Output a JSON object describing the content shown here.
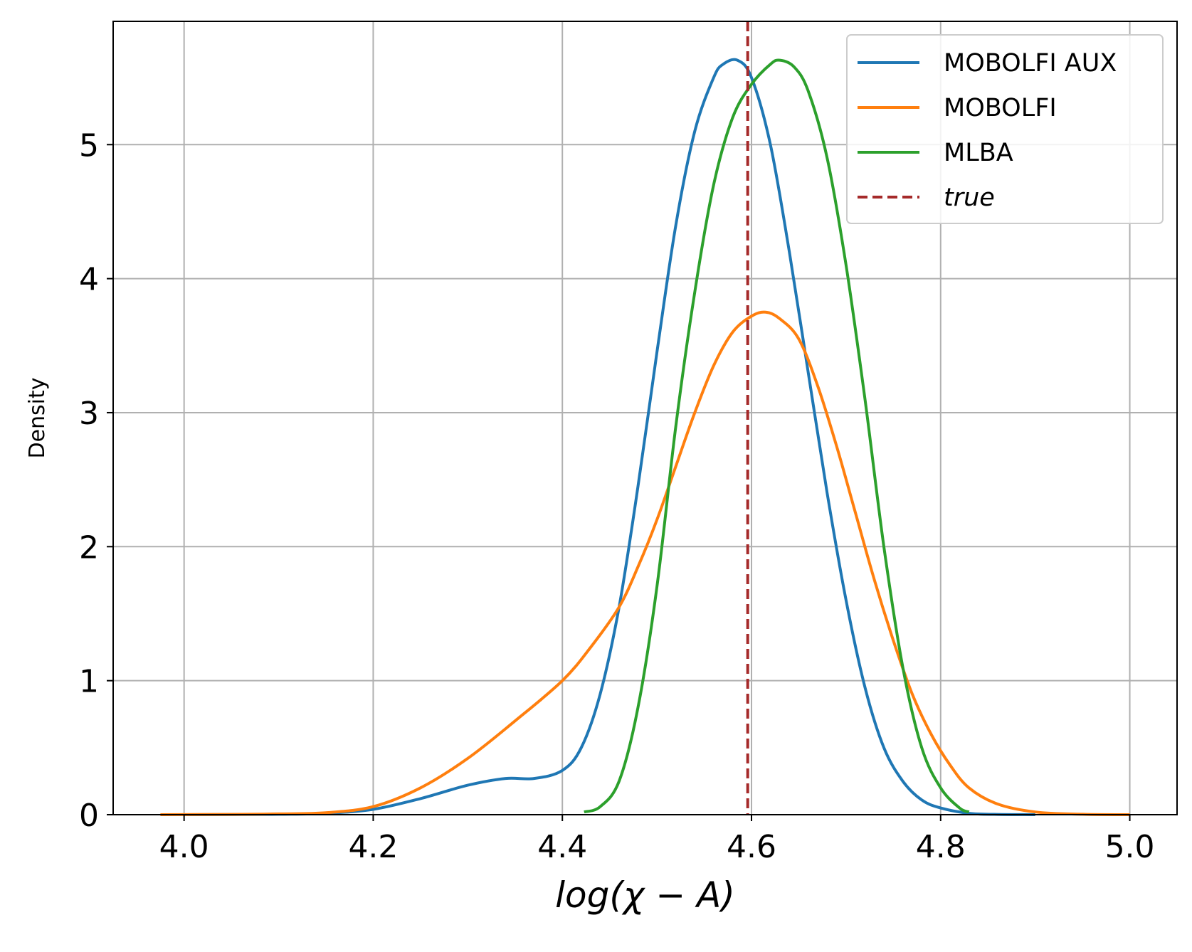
{
  "chart_data": {
    "type": "line",
    "xlabel": "log(χ − A)",
    "ylabel": "Density",
    "xlim": [
      3.925,
      5.05
    ],
    "ylim": [
      0,
      5.92
    ],
    "grid": true,
    "legend_position": "top-right",
    "xticks": [
      "4.0",
      "4.2",
      "4.4",
      "4.6",
      "4.8",
      "5.0"
    ],
    "xtick_values": [
      4.0,
      4.2,
      4.4,
      4.6,
      4.8,
      5.0
    ],
    "yticks": [
      "0",
      "1",
      "2",
      "3",
      "4",
      "5"
    ],
    "ytick_values": [
      0,
      1,
      2,
      3,
      4,
      5
    ],
    "series": [
      {
        "name": "MOBOLFI AUX",
        "color": "#1f77b4",
        "style": "solid",
        "points": [
          [
            4.0,
            0.0
          ],
          [
            4.1,
            0.003
          ],
          [
            4.15,
            0.01
          ],
          [
            4.2,
            0.04
          ],
          [
            4.25,
            0.12
          ],
          [
            4.3,
            0.22
          ],
          [
            4.34,
            0.27
          ],
          [
            4.37,
            0.27
          ],
          [
            4.4,
            0.33
          ],
          [
            4.42,
            0.5
          ],
          [
            4.44,
            0.9
          ],
          [
            4.46,
            1.55
          ],
          [
            4.48,
            2.45
          ],
          [
            4.5,
            3.45
          ],
          [
            4.52,
            4.4
          ],
          [
            4.54,
            5.1
          ],
          [
            4.56,
            5.5
          ],
          [
            4.57,
            5.6
          ],
          [
            4.585,
            5.63
          ],
          [
            4.6,
            5.5
          ],
          [
            4.62,
            5.0
          ],
          [
            4.64,
            4.2
          ],
          [
            4.66,
            3.3
          ],
          [
            4.68,
            2.4
          ],
          [
            4.7,
            1.6
          ],
          [
            4.72,
            0.95
          ],
          [
            4.74,
            0.5
          ],
          [
            4.76,
            0.25
          ],
          [
            4.78,
            0.11
          ],
          [
            4.8,
            0.05
          ],
          [
            4.83,
            0.01
          ],
          [
            4.86,
            0.002
          ],
          [
            4.9,
            0.0
          ]
        ]
      },
      {
        "name": "MOBOLFI",
        "color": "#ff7f0e",
        "style": "solid",
        "points": [
          [
            3.975,
            0.0
          ],
          [
            4.05,
            0.002
          ],
          [
            4.1,
            0.006
          ],
          [
            4.15,
            0.015
          ],
          [
            4.2,
            0.06
          ],
          [
            4.25,
            0.2
          ],
          [
            4.3,
            0.42
          ],
          [
            4.35,
            0.7
          ],
          [
            4.4,
            1.0
          ],
          [
            4.43,
            1.25
          ],
          [
            4.46,
            1.55
          ],
          [
            4.48,
            1.85
          ],
          [
            4.5,
            2.2
          ],
          [
            4.52,
            2.6
          ],
          [
            4.54,
            3.0
          ],
          [
            4.56,
            3.35
          ],
          [
            4.58,
            3.6
          ],
          [
            4.6,
            3.72
          ],
          [
            4.615,
            3.75
          ],
          [
            4.63,
            3.7
          ],
          [
            4.65,
            3.55
          ],
          [
            4.67,
            3.2
          ],
          [
            4.69,
            2.75
          ],
          [
            4.71,
            2.25
          ],
          [
            4.73,
            1.75
          ],
          [
            4.75,
            1.3
          ],
          [
            4.77,
            0.9
          ],
          [
            4.79,
            0.6
          ],
          [
            4.81,
            0.37
          ],
          [
            4.83,
            0.2
          ],
          [
            4.86,
            0.08
          ],
          [
            4.9,
            0.02
          ],
          [
            4.95,
            0.003
          ],
          [
            5.0,
            0.0
          ]
        ]
      },
      {
        "name": "MLBA",
        "color": "#2ca02c",
        "style": "solid",
        "points": [
          [
            4.423,
            0.02
          ],
          [
            4.44,
            0.06
          ],
          [
            4.46,
            0.25
          ],
          [
            4.48,
            0.8
          ],
          [
            4.5,
            1.7
          ],
          [
            4.52,
            2.9
          ],
          [
            4.54,
            3.9
          ],
          [
            4.56,
            4.7
          ],
          [
            4.58,
            5.2
          ],
          [
            4.6,
            5.45
          ],
          [
            4.62,
            5.6
          ],
          [
            4.63,
            5.63
          ],
          [
            4.645,
            5.58
          ],
          [
            4.66,
            5.4
          ],
          [
            4.68,
            4.9
          ],
          [
            4.7,
            4.1
          ],
          [
            4.72,
            3.1
          ],
          [
            4.74,
            2.0
          ],
          [
            4.76,
            1.1
          ],
          [
            4.78,
            0.5
          ],
          [
            4.8,
            0.2
          ],
          [
            4.82,
            0.05
          ],
          [
            4.83,
            0.02
          ]
        ]
      }
    ],
    "reference_line": {
      "name": "true",
      "x": 4.596,
      "color": "#a52a2a",
      "style": "dashed"
    },
    "legend": [
      "MOBOLFI AUX",
      "MOBOLFI",
      "MLBA",
      "true"
    ]
  }
}
